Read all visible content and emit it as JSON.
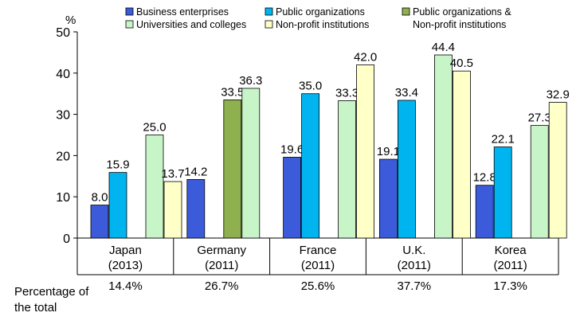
{
  "chart_data": {
    "type": "bar",
    "ylabel": "%",
    "ylim": [
      0,
      50
    ],
    "yticks": [
      0,
      10,
      20,
      30,
      40,
      50
    ],
    "legend_position": "top",
    "categories": [
      {
        "name": "Japan",
        "year": "(2013)",
        "share": "14.4%"
      },
      {
        "name": "Germany",
        "year": "(2011)",
        "share": "26.7%"
      },
      {
        "name": "France",
        "year": "(2011)",
        "share": "25.6%"
      },
      {
        "name": "U.K.",
        "year": "(2011)",
        "share": "37.7%"
      },
      {
        "name": "Korea",
        "year": "(2011)",
        "share": "17.3%"
      }
    ],
    "row_label": [
      "Percentage of",
      "the total"
    ],
    "series": [
      {
        "name": "Business enterprises",
        "color": "#3b5bdb",
        "values": [
          8.0,
          14.2,
          19.6,
          19.1,
          12.8
        ]
      },
      {
        "name": "Public organizations",
        "color": "#00b4f0",
        "values": [
          15.9,
          null,
          35.0,
          33.4,
          22.1
        ]
      },
      {
        "name": "Public organizations & Non-profit institutions",
        "legend_lines": [
          "Public organizations &",
          "Non-profit institutions"
        ],
        "color": "#8fb04e",
        "values": [
          null,
          33.5,
          null,
          null,
          null
        ]
      },
      {
        "name": "Universities and colleges",
        "color": "#c8f5c8",
        "values": [
          25.0,
          36.3,
          33.3,
          44.4,
          27.3
        ]
      },
      {
        "name": "Non-profit institutions",
        "color": "#ffffc8",
        "values": [
          13.7,
          null,
          42.0,
          40.5,
          32.9
        ]
      }
    ]
  }
}
